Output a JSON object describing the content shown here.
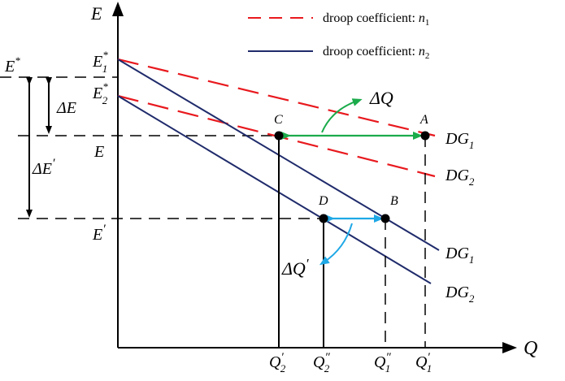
{
  "axes": {
    "y_label": "E",
    "x_label": "Q"
  },
  "legend": {
    "item1": {
      "text": "droop coefficient: ",
      "var": "n",
      "sub": "1",
      "color": "#e8191e",
      "style": "dashed"
    },
    "item2": {
      "text": "droop coefficient: ",
      "var": "n",
      "sub": "2",
      "color": "#1f2b6b",
      "style": "solid"
    }
  },
  "y_labels": {
    "e_star": {
      "main": "E",
      "sup": "*"
    },
    "e1_star": {
      "main": "E",
      "sup": "*",
      "sub": "1"
    },
    "e2_star": {
      "main": "E",
      "sup": "*",
      "sub": "2"
    },
    "e": {
      "main": "E"
    },
    "e_prime": {
      "main": "E",
      "sup": "′"
    }
  },
  "deltas": {
    "delta_e": {
      "delta": "Δ",
      "main": "E"
    },
    "delta_e_prime": {
      "delta": "Δ",
      "main": "E",
      "sup": "′"
    },
    "delta_q": {
      "delta": "Δ",
      "main": "Q"
    },
    "delta_q_prime": {
      "delta": "Δ",
      "main": "Q",
      "sup": "′"
    }
  },
  "points": {
    "A": "A",
    "B": "B",
    "C": "C",
    "D": "D"
  },
  "line_labels": {
    "dg1_red": {
      "main": "DG",
      "sub": "1"
    },
    "dg2_red": {
      "main": "DG",
      "sub": "2"
    },
    "dg1_blue": {
      "main": "DG",
      "sub": "1"
    },
    "dg2_blue": {
      "main": "DG",
      "sub": "2"
    }
  },
  "x_ticks": {
    "q2p": {
      "main": "Q",
      "sup": "′",
      "sub": "2"
    },
    "q2pp": {
      "main": "Q",
      "sup": "″",
      "sub": "2"
    },
    "q1pp": {
      "main": "Q",
      "sup": "″",
      "sub": "1"
    },
    "q1p": {
      "main": "Q",
      "sup": "′",
      "sub": "1"
    }
  },
  "colors": {
    "red": "#e8191e",
    "navy": "#1f2b6b",
    "green": "#1bab4b",
    "cyan": "#1fa8e6",
    "black": "#000000"
  }
}
